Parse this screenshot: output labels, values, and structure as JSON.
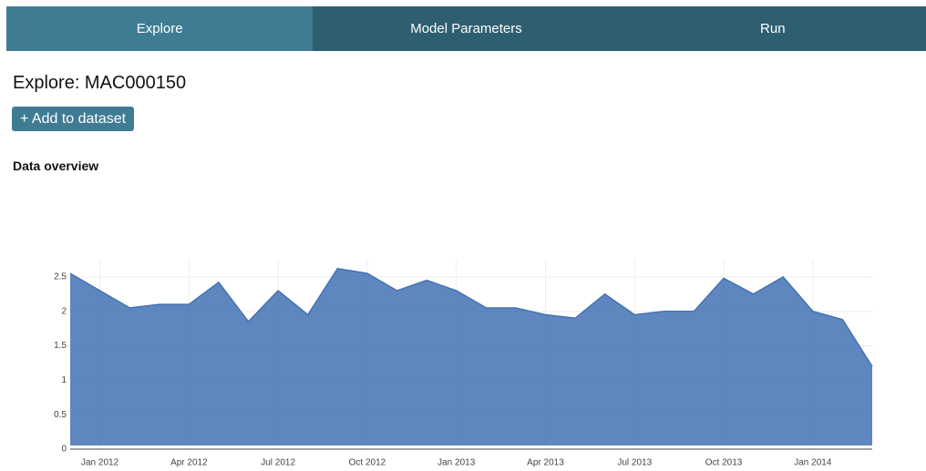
{
  "nav": {
    "tabs": [
      "Explore",
      "Model Parameters",
      "Run"
    ]
  },
  "header": {
    "title": "Explore: MAC000150",
    "button": "+ Add to dataset",
    "section": "Data overview"
  },
  "chart_data": {
    "type": "line",
    "color": "#4372b4",
    "grid": true,
    "x": [
      "2011-12",
      "2012-01",
      "2012-02",
      "2012-03",
      "2012-04",
      "2012-05",
      "2012-06",
      "2012-07",
      "2012-08",
      "2012-09",
      "2012-10",
      "2012-11",
      "2012-12",
      "2013-01",
      "2013-02",
      "2013-03",
      "2013-04",
      "2013-05",
      "2013-06",
      "2013-07",
      "2013-08",
      "2013-09",
      "2013-10",
      "2013-11",
      "2013-12",
      "2014-01",
      "2014-02",
      "2014-03"
    ],
    "values": [
      2.55,
      2.3,
      2.05,
      2.1,
      2.1,
      2.42,
      1.85,
      2.3,
      1.95,
      2.62,
      2.55,
      2.3,
      2.45,
      2.3,
      2.05,
      2.05,
      1.95,
      1.9,
      2.25,
      1.95,
      2.0,
      2.0,
      2.48,
      2.25,
      2.5,
      2.0,
      1.88,
      1.2
    ],
    "xlim": [
      "2011-12",
      "2014-03"
    ],
    "xticks": [
      {
        "value": "2012-01",
        "label": "Jan 2012"
      },
      {
        "value": "2012-04",
        "label": "Apr 2012"
      },
      {
        "value": "2012-07",
        "label": "Jul 2012"
      },
      {
        "value": "2012-10",
        "label": "Oct 2012"
      },
      {
        "value": "2013-01",
        "label": "Jan 2013"
      },
      {
        "value": "2013-04",
        "label": "Apr 2013"
      },
      {
        "value": "2013-07",
        "label": "Jul 2013"
      },
      {
        "value": "2013-10",
        "label": "Oct 2013"
      },
      {
        "value": "2014-01",
        "label": "Jan 2014"
      }
    ],
    "ylim": [
      0,
      2.75
    ],
    "yticks": [
      0,
      0.5,
      1,
      1.5,
      2,
      2.5
    ]
  }
}
